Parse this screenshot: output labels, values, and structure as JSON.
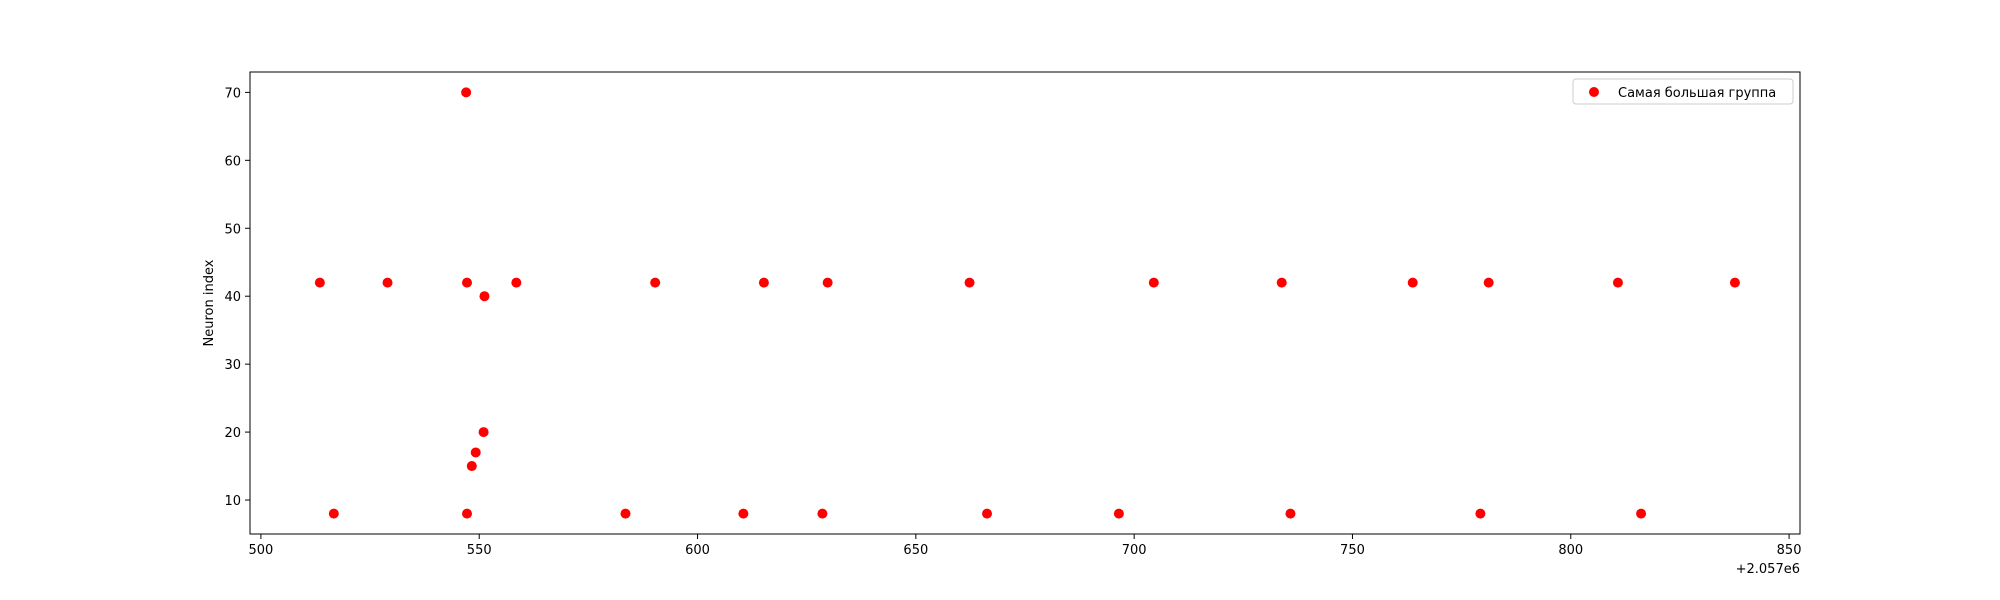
{
  "chart_data": {
    "type": "scatter",
    "title": "",
    "xlabel": "",
    "ylabel": "Neuron index",
    "x_offset_label": "+2.057e6",
    "xlim": [
      497.5,
      852.5
    ],
    "ylim": [
      5,
      73
    ],
    "x_ticks": [
      500,
      550,
      600,
      650,
      700,
      750,
      800,
      850
    ],
    "y_ticks": [
      10,
      20,
      30,
      40,
      50,
      60,
      70
    ],
    "grid": false,
    "legend_position": "top-right",
    "series": [
      {
        "name": "Самая большая группа",
        "color": "#ff0000",
        "points": [
          {
            "x": 513.5,
            "y": 42
          },
          {
            "x": 529,
            "y": 42
          },
          {
            "x": 547.2,
            "y": 42
          },
          {
            "x": 558.5,
            "y": 42
          },
          {
            "x": 590.3,
            "y": 42
          },
          {
            "x": 615.2,
            "y": 42
          },
          {
            "x": 629.8,
            "y": 42
          },
          {
            "x": 662.3,
            "y": 42
          },
          {
            "x": 704.5,
            "y": 42
          },
          {
            "x": 733.8,
            "y": 42
          },
          {
            "x": 763.8,
            "y": 42
          },
          {
            "x": 781.2,
            "y": 42
          },
          {
            "x": 810.8,
            "y": 42
          },
          {
            "x": 837.6,
            "y": 42
          },
          {
            "x": 516.7,
            "y": 8
          },
          {
            "x": 547.2,
            "y": 8
          },
          {
            "x": 583.5,
            "y": 8
          },
          {
            "x": 610.5,
            "y": 8
          },
          {
            "x": 628.6,
            "y": 8
          },
          {
            "x": 666.3,
            "y": 8
          },
          {
            "x": 696.5,
            "y": 8
          },
          {
            "x": 735.8,
            "y": 8
          },
          {
            "x": 779.3,
            "y": 8
          },
          {
            "x": 816.1,
            "y": 8
          },
          {
            "x": 547,
            "y": 70
          },
          {
            "x": 551.2,
            "y": 40
          },
          {
            "x": 551,
            "y": 20
          },
          {
            "x": 549.2,
            "y": 17
          },
          {
            "x": 548.3,
            "y": 15
          }
        ]
      }
    ]
  }
}
